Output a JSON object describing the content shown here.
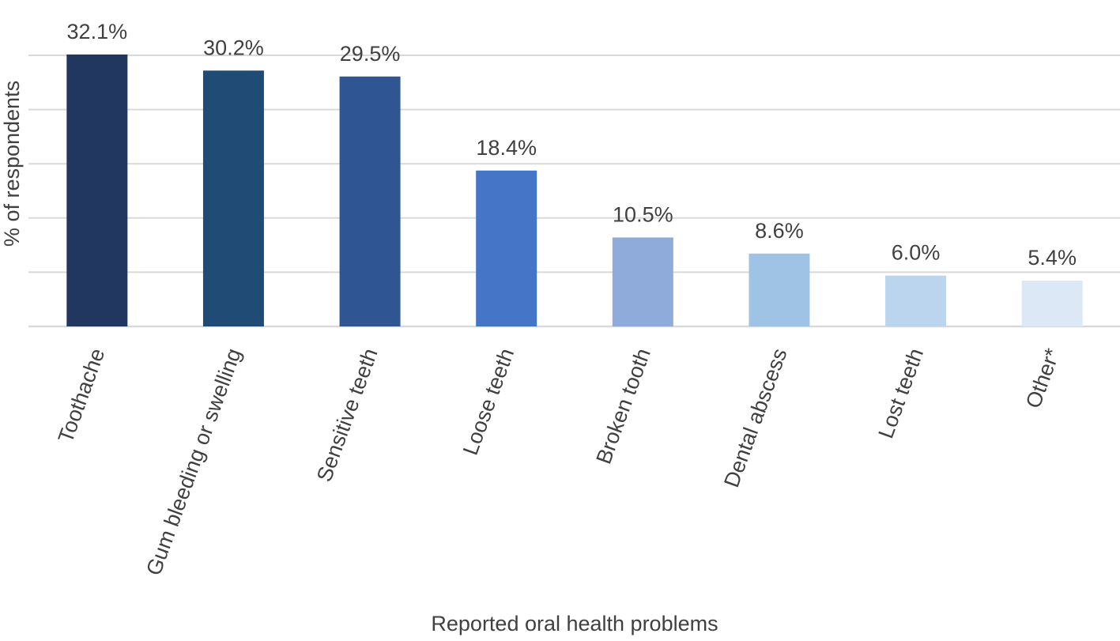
{
  "chart_data": {
    "type": "bar",
    "categories": [
      "Toothache",
      "Gum bleeding or swelling",
      "Sensitive teeth",
      "Loose teeth",
      "Broken tooth",
      "Dental abscess",
      "Lost teeth",
      "Other*"
    ],
    "values": [
      32.1,
      30.2,
      29.5,
      18.4,
      10.5,
      8.6,
      6.0,
      5.4
    ],
    "data_labels": [
      "32.1%",
      "30.2%",
      "29.5%",
      "18.4%",
      "10.5%",
      "8.6%",
      "6.0%",
      "5.4%"
    ],
    "colors": [
      "#21375f",
      "#1f4b74",
      "#2f5592",
      "#4575c7",
      "#8eabd9",
      "#9fc3e5",
      "#bbd5ee",
      "#dce8f6"
    ],
    "gridline_color": "#d9d9d9",
    "label_color": "#404040",
    "xlabel": "Reported oral health problems",
    "ylabel": "% of respondents",
    "ylim": [
      0,
      35
    ],
    "grid": true,
    "y_tick_labels_shown": false
  }
}
